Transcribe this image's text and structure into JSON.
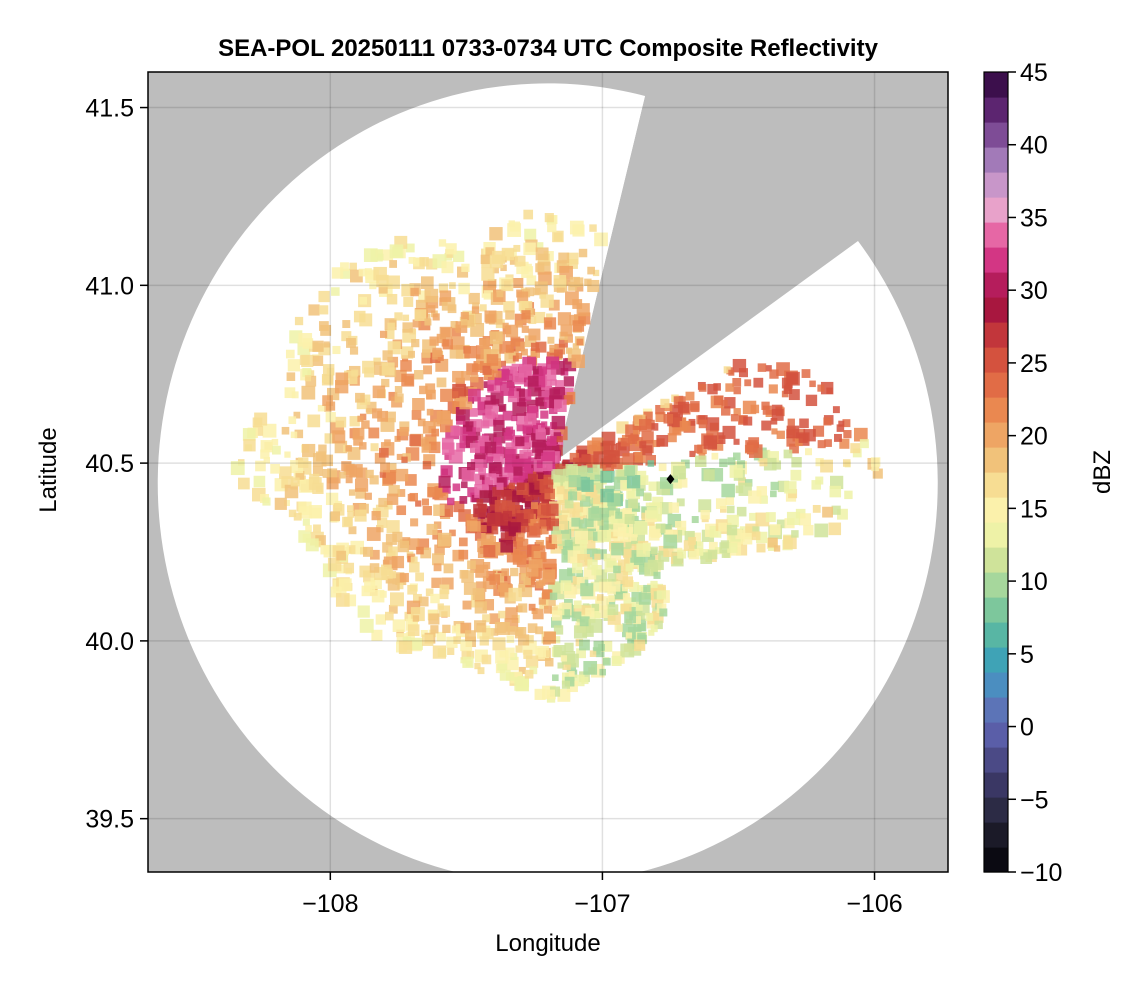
{
  "chart_data": {
    "type": "heatmap",
    "title": "SEA-POL 20250111 0733-0734 UTC Composite Reflectivity",
    "xlabel": "Longitude",
    "ylabel": "Latitude",
    "xlim": [
      -108.67,
      -105.73
    ],
    "ylim": [
      39.35,
      41.6
    ],
    "xticks": [
      -108,
      -107,
      -106
    ],
    "xtick_labels": [
      "−108",
      "−107",
      "−106"
    ],
    "yticks": [
      39.5,
      40.0,
      40.5,
      41.0,
      41.5
    ],
    "ytick_labels": [
      "39.5",
      "40.0",
      "40.5",
      "41.0",
      "41.5"
    ],
    "grid": true,
    "background_color": "#bdbdbd",
    "radar_center": [
      -107.18,
      40.48
    ],
    "marker_point": [
      -106.75,
      40.455
    ],
    "colorbar": {
      "label": "dBZ",
      "range": [
        -10,
        45
      ],
      "ticks": [
        -10,
        -5,
        0,
        5,
        10,
        15,
        20,
        25,
        30,
        35,
        40,
        45
      ],
      "tick_labels": [
        "−10",
        "−5",
        "0",
        "5",
        "10",
        "15",
        "20",
        "25",
        "30",
        "35",
        "40",
        "45"
      ],
      "step": 2,
      "colors": [
        "#0b0a12",
        "#1b1a28",
        "#2c2b45",
        "#3a3764",
        "#4b4a86",
        "#5a5ea8",
        "#5c74b7",
        "#4b8ec0",
        "#3fa3b6",
        "#58b6a4",
        "#7dc79c",
        "#a6d79c",
        "#cfe39a",
        "#eef2a7",
        "#fbf1ab",
        "#f7dd93",
        "#f1c27a",
        "#eea564",
        "#ea8850",
        "#e16c46",
        "#d4523e",
        "#c2363b",
        "#a8173f",
        "#b51d5c",
        "#d33684",
        "#e667a5",
        "#e8a2ca",
        "#c896c9",
        "#a27ab8",
        "#7e4c96",
        "#5c2570",
        "#3c0f4c"
      ]
    }
  }
}
